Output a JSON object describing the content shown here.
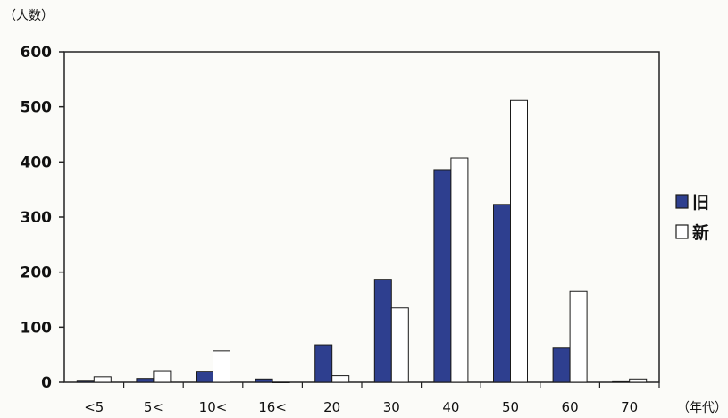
{
  "chart_data": {
    "type": "bar",
    "ylabel": "（人数）",
    "xlabel": "（年代）",
    "ylim": [
      0,
      600
    ],
    "yticks": [
      0,
      100,
      200,
      300,
      400,
      500,
      600
    ],
    "categories": [
      "<5",
      "5<",
      "10<",
      "16<",
      "20",
      "30",
      "40",
      "50",
      "60",
      "70"
    ],
    "series": [
      {
        "name": "旧",
        "color": "#2e3f8f",
        "values": [
          2,
          7,
          20,
          6,
          68,
          187,
          386,
          323,
          62,
          1
        ]
      },
      {
        "name": "新",
        "color": "#ffffff",
        "values": [
          10,
          21,
          57,
          0,
          12,
          135,
          407,
          512,
          165,
          6
        ]
      }
    ],
    "grid": false,
    "legend_position": "right"
  }
}
